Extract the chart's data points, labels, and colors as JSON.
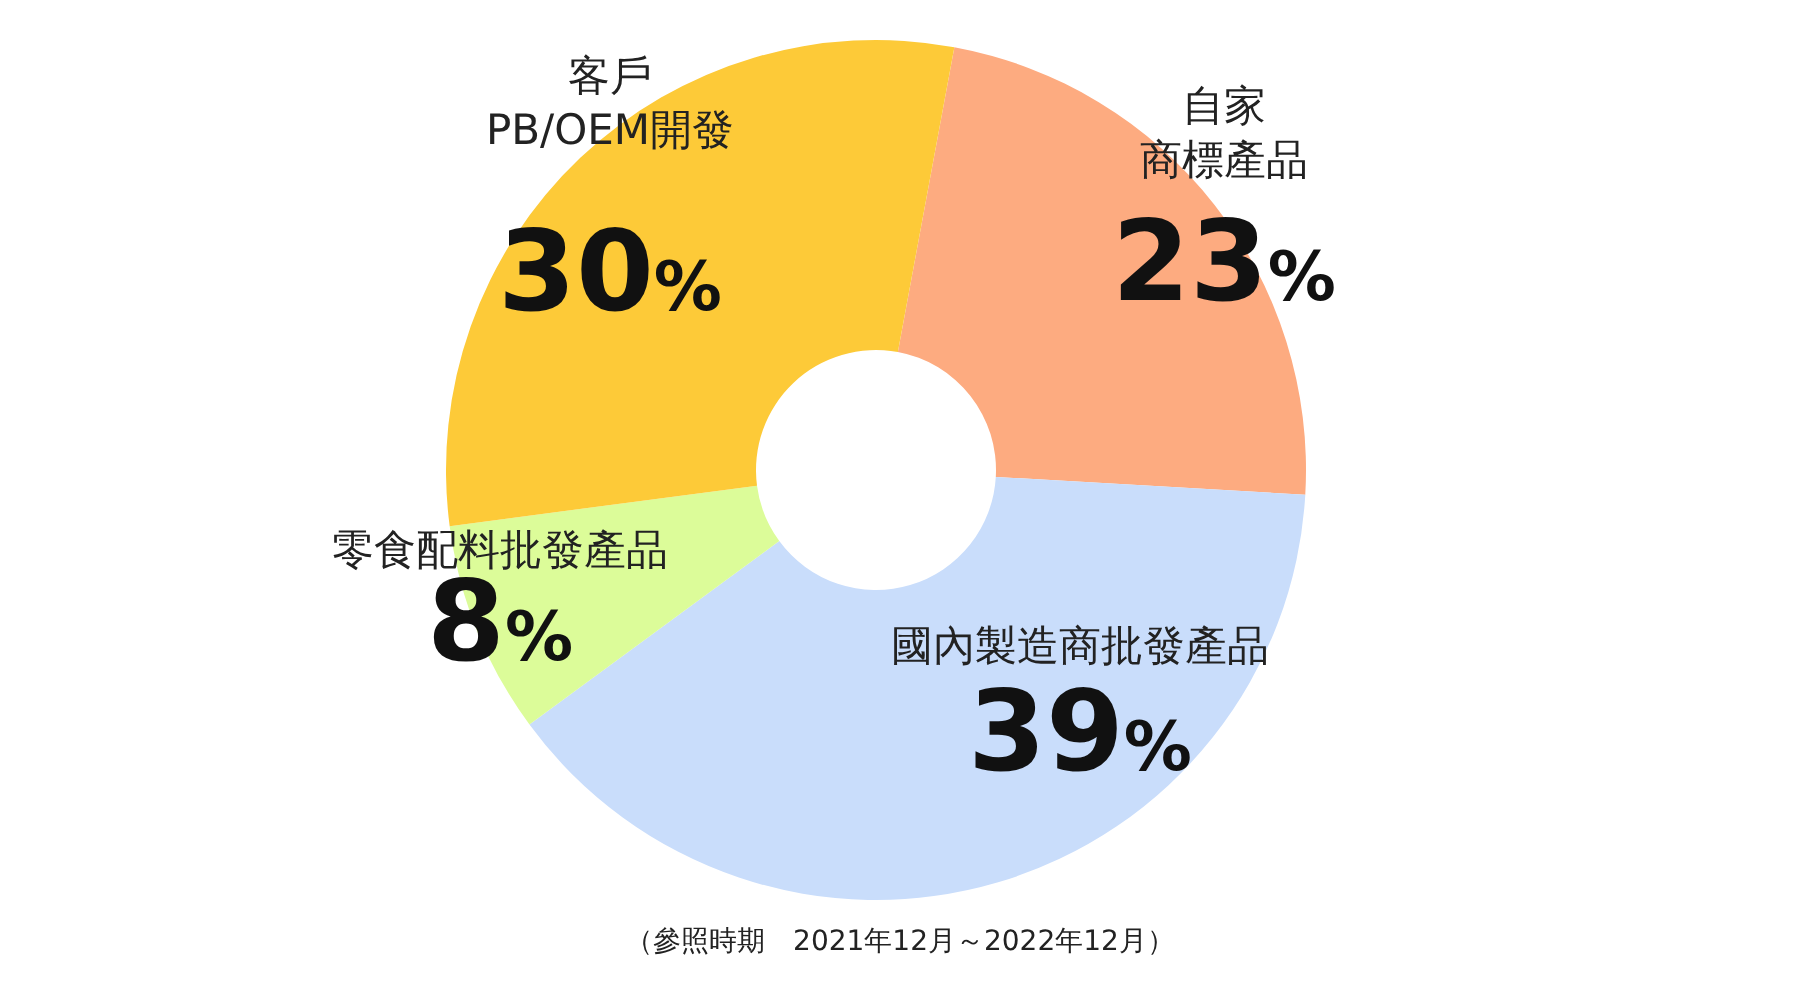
{
  "chart_data": {
    "type": "donut",
    "categories": [
      "自家商標產品",
      "國內製造商批發產品",
      "零食配料批發產品",
      "客戶PB/OEM開發"
    ],
    "values": [
      23,
      39,
      8,
      30
    ],
    "colors": [
      "#fdab80",
      "#c9ddfb",
      "#dcfc99",
      "#fdca38"
    ],
    "value_labels": [
      "23%",
      "39%",
      "8%",
      "30%"
    ],
    "annotations": [
      "（參照時期　2021年12月～2022年12月）"
    ]
  }
}
